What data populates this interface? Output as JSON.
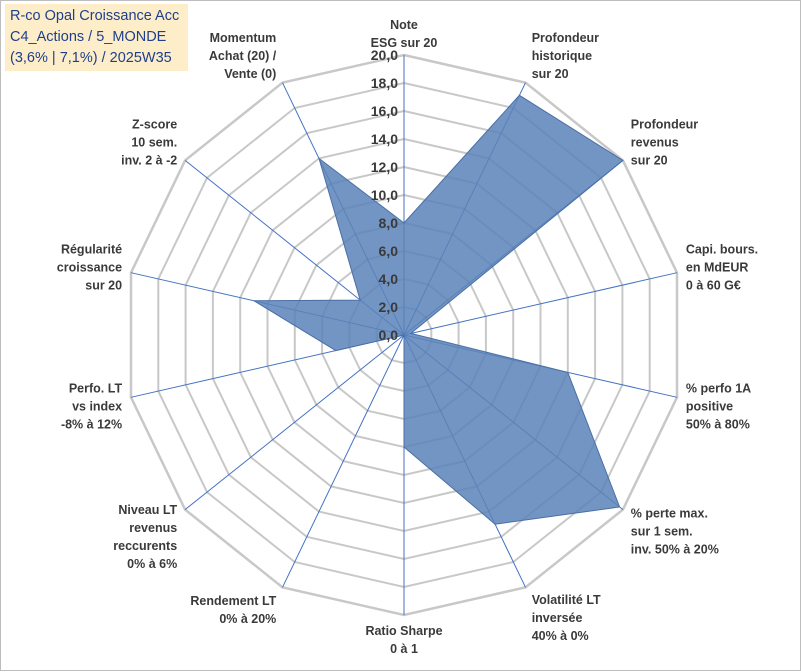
{
  "title_box": {
    "line1": "R-co Opal Croissance Acc",
    "line2": "C4_Actions / 5_MONDE",
    "line3": "(3,6% | 7,1%) / 2025W35"
  },
  "colors": {
    "fill": "#5b83b9",
    "stroke": "#4a6fa5",
    "grid": "#c8c8c8",
    "spoke": "#4472c4",
    "title_bg": "#fdeec9",
    "title_text": "#1f3f8c"
  },
  "chart_data": {
    "type": "radar",
    "rmax": 20,
    "ticks": [
      "0,0",
      "2,0",
      "4,0",
      "6,0",
      "8,0",
      "10,0",
      "12,0",
      "14,0",
      "16,0",
      "18,0",
      "20,0"
    ],
    "axes": [
      [
        "Note",
        "ESG sur 20"
      ],
      [
        "Profondeur",
        "historique",
        "sur 20"
      ],
      [
        "Profondeur",
        "revenus",
        "sur 20"
      ],
      [
        "Capi. bours.",
        "en MdEUR",
        "0 à 60 G€"
      ],
      [
        "% perfo 1A",
        "positive",
        "50% à 80%"
      ],
      [
        "% perte max.",
        "sur 1 sem.",
        "inv. 50% à 20%"
      ],
      [
        "Volatilité LT",
        "inversée",
        "40% à 0%"
      ],
      [
        "Ratio Sharpe",
        "0 à 1"
      ],
      [
        "Rendement LT",
        "0% à 20%"
      ],
      [
        "Niveau LT",
        "revenus",
        "reccurents",
        "0% à 6%"
      ],
      [
        "Perfo. LT",
        "vs index",
        "-8% à 12%"
      ],
      [
        "Régularité",
        "croissance",
        "sur 20"
      ],
      [
        "Z-score",
        "10 sem.",
        "inv. 2 à -2"
      ],
      [
        "Momentum",
        "Achat (20) /",
        "Vente (0)"
      ]
    ],
    "values": [
      8,
      19,
      20,
      0.5,
      12,
      19.7,
      15,
      8,
      0,
      0,
      5,
      11,
      4,
      14
    ],
    "grid": true
  }
}
